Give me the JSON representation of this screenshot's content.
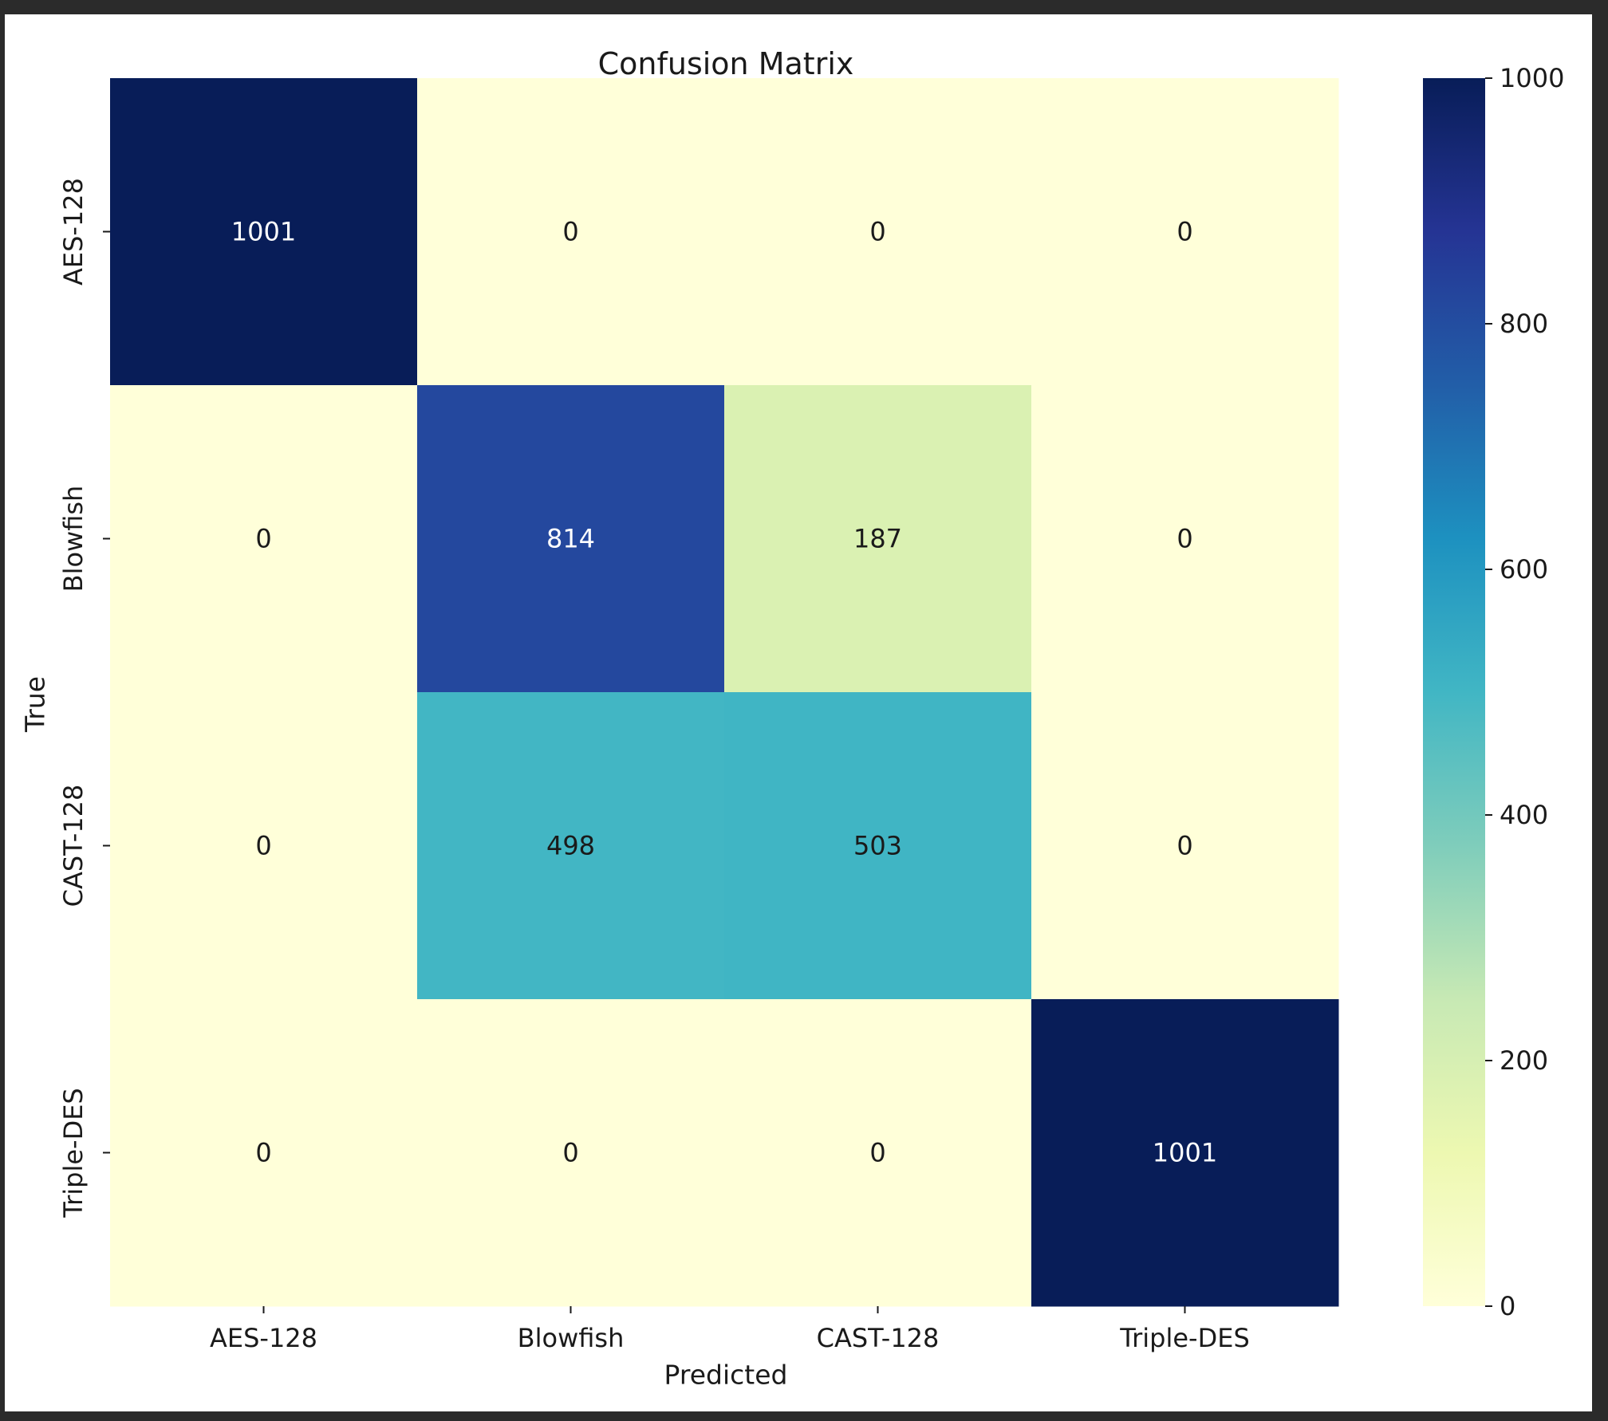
{
  "chart_data": {
    "type": "heatmap",
    "title": "Confusion Matrix",
    "xlabel": "Predicted",
    "ylabel": "True",
    "x_categories": [
      "AES-128",
      "Blowfish",
      "CAST-128",
      "Triple-DES"
    ],
    "y_categories": [
      "AES-128",
      "Blowfish",
      "CAST-128",
      "Triple-DES"
    ],
    "values": [
      [
        1001,
        0,
        0,
        0
      ],
      [
        0,
        814,
        187,
        0
      ],
      [
        0,
        498,
        503,
        0
      ],
      [
        0,
        0,
        0,
        1001
      ]
    ],
    "colormap": "YlGnBu",
    "colorbar": {
      "range": [
        0,
        1000
      ],
      "ticks": [
        0,
        200,
        400,
        600,
        800,
        1000
      ]
    },
    "grid": false,
    "legend": "colorbar-right"
  }
}
